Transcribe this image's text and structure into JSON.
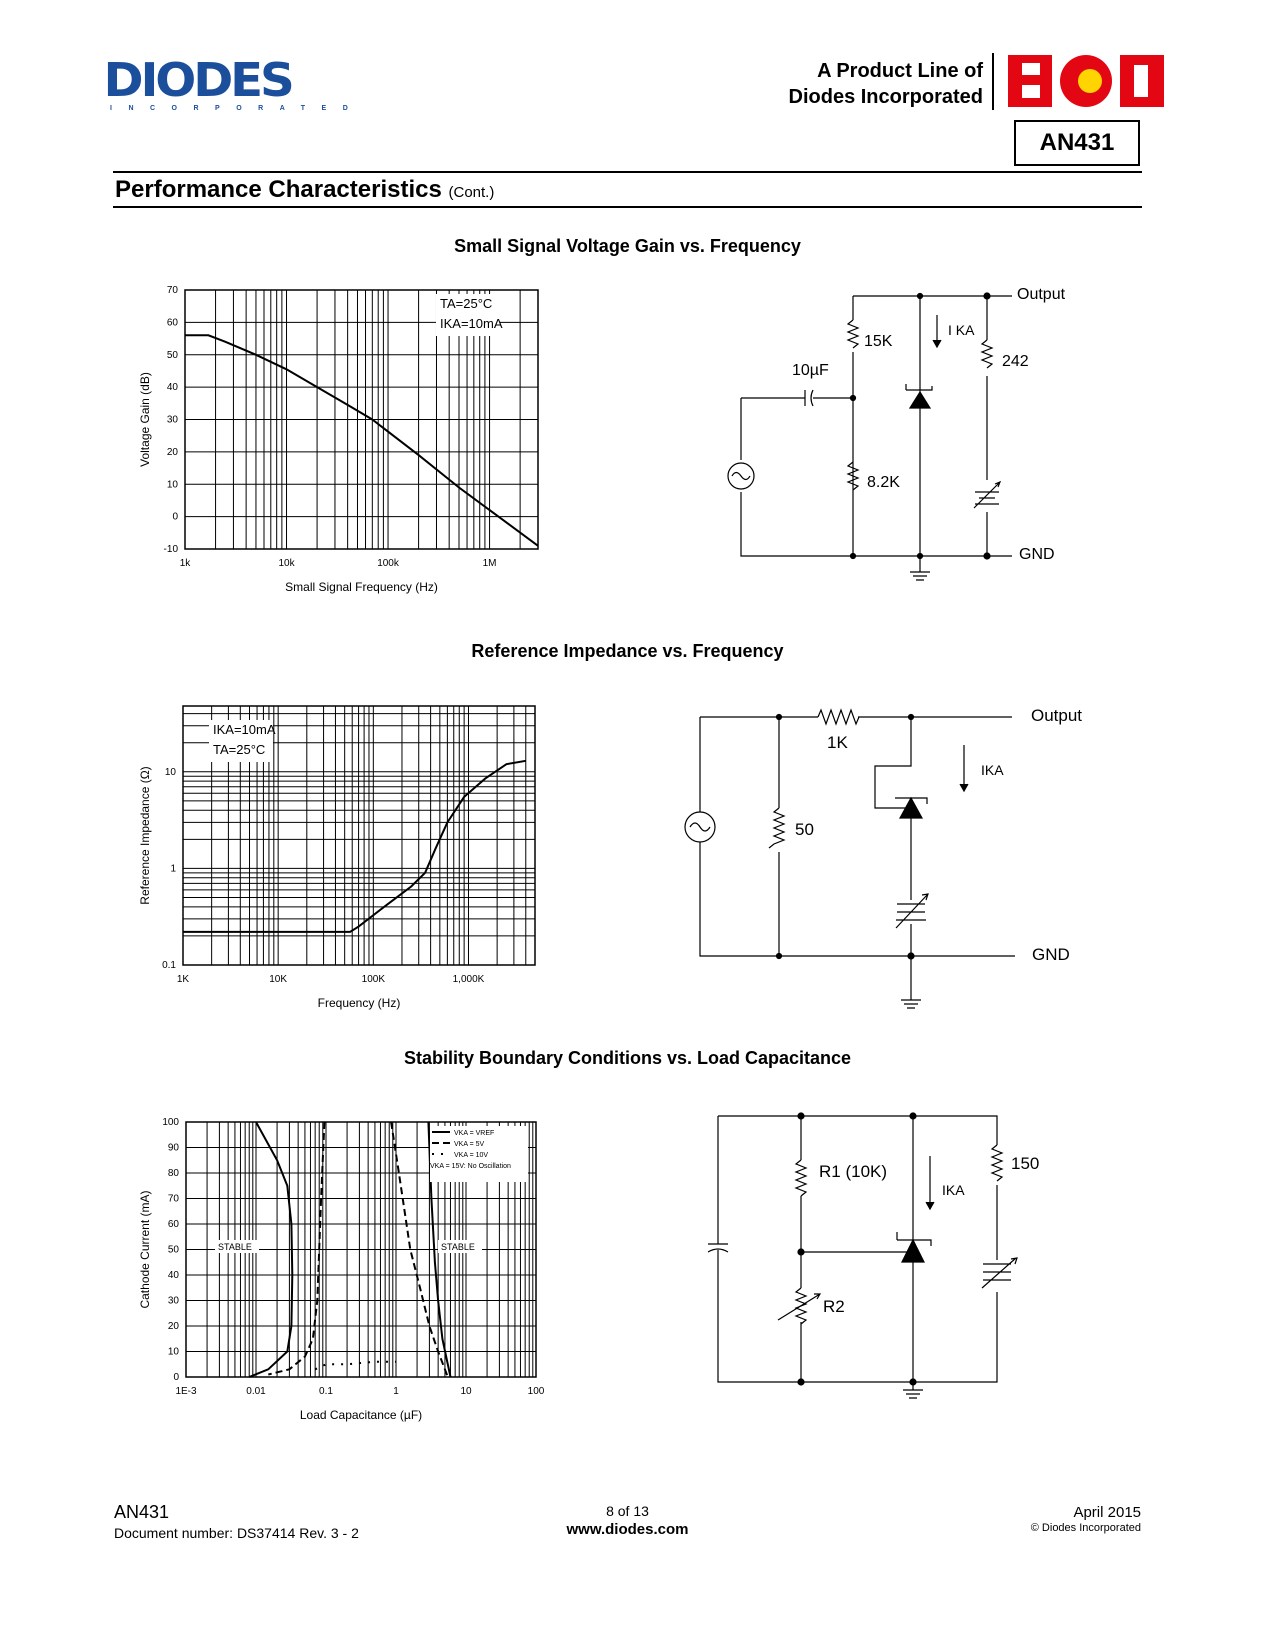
{
  "header": {
    "logo_text": "DIODES",
    "logo_sub": "INCORPORATED",
    "product_line": [
      "A Product Line of",
      "Diodes Incorporated"
    ],
    "bcd_logo": "BCD",
    "part": "AN431"
  },
  "section": {
    "title": "Performance Characteristics",
    "cont": "(Cont.)"
  },
  "charts_titles": [
    "Small Signal Voltage Gain vs. Frequency",
    "Reference Impedance vs. Frequency",
    "Stability Boundary Conditions vs. Load Capacitance"
  ],
  "chart_data": [
    {
      "type": "line",
      "title": "Small Signal Voltage Gain vs. Frequency",
      "xlabel": "Small Signal Frequency (Hz)",
      "ylabel": "Voltage Gain (dB)",
      "xscale": "log",
      "xlim": [
        1000,
        3000000
      ],
      "ylim": [
        -10,
        70
      ],
      "xticks": [
        {
          "v": 1000,
          "l": "1k"
        },
        {
          "v": 10000,
          "l": "10k"
        },
        {
          "v": 100000,
          "l": "100k"
        },
        {
          "v": 1000000,
          "l": "1M"
        }
      ],
      "yticks": [
        -10,
        0,
        10,
        20,
        30,
        40,
        50,
        60,
        70
      ],
      "grid": true,
      "annotation": [
        "TA=25°C",
        "IKA=10mA"
      ],
      "series": [
        {
          "style": "solid",
          "x": [
            1000,
            1700,
            2500,
            5000,
            10000,
            20000,
            40000,
            70000,
            200000,
            500000,
            1000000,
            3000000
          ],
          "y": [
            56,
            56,
            54,
            50,
            45.5,
            40,
            34.5,
            30,
            19,
            9,
            2,
            -9
          ]
        }
      ]
    },
    {
      "type": "line",
      "title": "Reference Impedance vs. Frequency",
      "xlabel": "Frequency (Hz)",
      "ylabel": "Reference Impedance (Ω)",
      "xscale": "log",
      "yscale": "log",
      "xlim": [
        1000,
        5000000
      ],
      "ylim": [
        0.1,
        48
      ],
      "xticks": [
        {
          "v": 1000,
          "l": "1K"
        },
        {
          "v": 10000,
          "l": "10K"
        },
        {
          "v": 100000,
          "l": "100K"
        },
        {
          "v": 1000000,
          "l": "1,000K"
        }
      ],
      "yticks": [
        {
          "v": 0.1,
          "l": "0.1"
        },
        {
          "v": 1,
          "l": "1"
        },
        {
          "v": 10,
          "l": "10"
        }
      ],
      "grid": true,
      "annotation": [
        "IKA=10mA",
        "TA=25°C"
      ],
      "series": [
        {
          "style": "solid",
          "x": [
            1000,
            57000,
            70000,
            130000,
            250000,
            350000,
            450000,
            600000,
            900000,
            1500000,
            2500000,
            4000000
          ],
          "y": [
            0.22,
            0.22,
            0.25,
            0.4,
            0.65,
            0.9,
            1.6,
            3,
            5.5,
            8.5,
            12,
            13
          ]
        }
      ]
    },
    {
      "type": "line",
      "title": "Stability Boundary Conditions vs. Load Capacitance",
      "xlabel": "Load Capacitance (µF)",
      "ylabel": "Cathode Current (mA)",
      "xscale": "log",
      "xlim": [
        0.001,
        100
      ],
      "ylim": [
        0,
        100
      ],
      "xticks": [
        {
          "v": 0.001,
          "l": "1E-3"
        },
        {
          "v": 0.01,
          "l": "0.01"
        },
        {
          "v": 0.1,
          "l": "0.1"
        },
        {
          "v": 1,
          "l": "1"
        },
        {
          "v": 10,
          "l": "10"
        },
        {
          "v": 100,
          "l": "100"
        }
      ],
      "yticks": [
        0,
        10,
        20,
        30,
        40,
        50,
        60,
        70,
        80,
        90,
        100
      ],
      "grid": true,
      "region_labels": [
        "STABLE",
        "STABLE"
      ],
      "legend": [
        "VKA = VREF",
        "VKA = 5V",
        "VKA = 10V",
        "VKA = 15V: No Oscillation"
      ],
      "legend_position": "top-right",
      "series": [
        {
          "name": "VKA = VREF",
          "style": "solid",
          "x": [
            0.01,
            0.02,
            0.028,
            0.032,
            0.033,
            0.032,
            0.028,
            0.015,
            0.008
          ],
          "y": [
            100,
            85,
            75,
            60,
            40,
            20,
            10,
            3,
            0
          ]
        },
        {
          "name": "VKA = VREF",
          "style": "solid",
          "x": [
            2.9,
            3.2,
            3.6,
            4,
            4.6,
            5.5,
            6
          ],
          "y": [
            100,
            70,
            45,
            30,
            15,
            5,
            0
          ]
        },
        {
          "name": "VKA = 5V",
          "style": "dashed",
          "x": [
            0.095,
            0.085,
            0.08,
            0.075,
            0.065,
            0.05,
            0.03,
            0.015
          ],
          "y": [
            100,
            70,
            50,
            30,
            15,
            8,
            3,
            1
          ]
        },
        {
          "name": "VKA = 5V",
          "style": "dashed",
          "x": [
            0.85,
            1.1,
            1.6,
            2.2,
            3,
            4,
            5,
            5.5
          ],
          "y": [
            100,
            80,
            50,
            35,
            20,
            10,
            3,
            0
          ]
        },
        {
          "name": "VKA = 10V",
          "style": "dotted",
          "x": [
            0.07,
            0.1,
            0.2,
            0.5,
            1
          ],
          "y": [
            3,
            5,
            5,
            6,
            6
          ]
        }
      ]
    }
  ],
  "circuits": {
    "c1": {
      "output": "Output",
      "gnd": "GND",
      "r1": "15K",
      "r2": "8.2K",
      "r3": "242",
      "cap": "10µF",
      "ika": "I KA"
    },
    "c2": {
      "output": "Output",
      "gnd": "GND",
      "r1": "1K",
      "r2": "50",
      "ika": "IKA"
    },
    "c3": {
      "r1": "R1 (10K)",
      "r2": "R2",
      "r3": "150",
      "ika": "IKA"
    }
  },
  "footer": {
    "part": "AN431",
    "docnum": "Document number: DS37414  Rev. 3 - 2",
    "page": "8 of 13",
    "url": "www.diodes.com",
    "date": "April 2015",
    "copyright": "© Diodes Incorporated"
  }
}
